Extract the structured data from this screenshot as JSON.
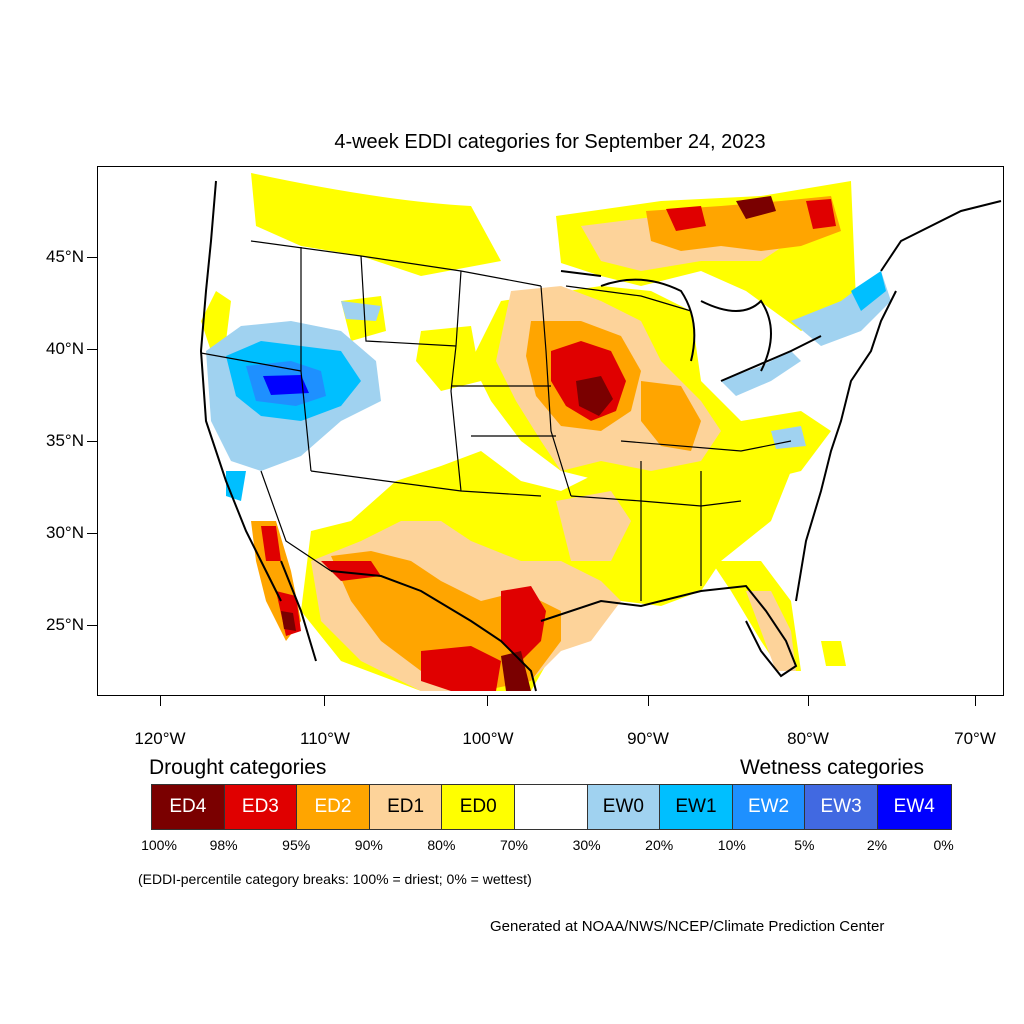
{
  "title": "4-week EDDI categories for September 24, 2023",
  "lat_labels": [
    "45°N",
    "40°N",
    "35°N",
    "30°N",
    "25°N"
  ],
  "lon_labels": [
    "120°W",
    "110°W",
    "100°W",
    "90°W",
    "80°W",
    "70°W"
  ],
  "legend": {
    "drought_heading": "Drought categories",
    "wetness_heading": "Wetness categories",
    "categories": [
      {
        "label": "ED4",
        "color": "#7a0000",
        "text_color": "#ffffff"
      },
      {
        "label": "ED3",
        "color": "#e00000",
        "text_color": "#ffffff"
      },
      {
        "label": "ED2",
        "color": "#ffa500",
        "text_color": "#ffffff"
      },
      {
        "label": "ED1",
        "color": "#fdd39a",
        "text_color": "#000000"
      },
      {
        "label": "ED0",
        "color": "#ffff00",
        "text_color": "#000000"
      },
      {
        "label": "",
        "color": "#ffffff",
        "text_color": "#000000"
      },
      {
        "label": "EW0",
        "color": "#a0d2f0",
        "text_color": "#000000"
      },
      {
        "label": "EW1",
        "color": "#00bfff",
        "text_color": "#000000"
      },
      {
        "label": "EW2",
        "color": "#1e90ff",
        "text_color": "#ffffff"
      },
      {
        "label": "EW3",
        "color": "#4169e1",
        "text_color": "#ffffff"
      },
      {
        "label": "EW4",
        "color": "#0000ff",
        "text_color": "#ffffff"
      }
    ],
    "breaks": [
      "100%",
      "98%",
      "95%",
      "90%",
      "80%",
      "70%",
      "30%",
      "20%",
      "10%",
      "5%",
      "2%",
      "0%"
    ]
  },
  "note": "(EDDI-percentile category breaks: 100% = driest; 0% = wettest)",
  "credit": "Generated at NOAA/NWS/NCEP/Climate Prediction Center"
}
